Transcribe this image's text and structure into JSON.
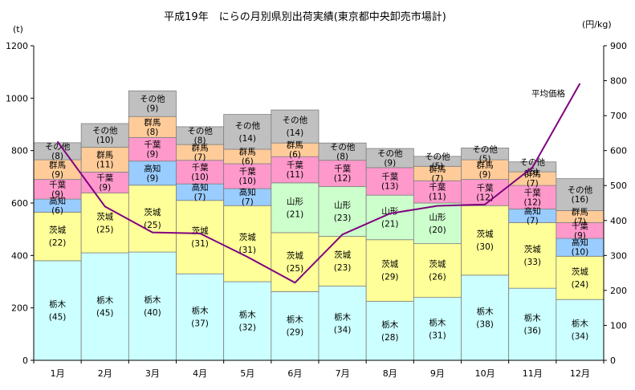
{
  "chart_data": {
    "type": "bar",
    "stacked": true,
    "title": "平成19年　にらの月別県別出荷実績(東京都中央卸売市場計)",
    "y_unit_left": "(t)",
    "y_unit_right": "(円/kg)",
    "ylim": [
      0,
      1200
    ],
    "y2lim": [
      0,
      900
    ],
    "yticks": [
      "0",
      "200",
      "400",
      "600",
      "800",
      "1000",
      "1200"
    ],
    "y2ticks": [
      "0",
      "100",
      "200",
      "300",
      "400",
      "500",
      "600",
      "700",
      "800",
      "900"
    ],
    "grid": false,
    "categories": [
      "1月",
      "2月",
      "3月",
      "4月",
      "5月",
      "6月",
      "7月",
      "8月",
      "9月",
      "10月",
      "11月",
      "12月"
    ],
    "series": [
      {
        "name": "栃木",
        "color": "#ccffff",
        "label": "栃木",
        "values": [
          380,
          410,
          413,
          330,
          300,
          262,
          283,
          225,
          240,
          325,
          275,
          232
        ],
        "shares": [
          "(45)",
          "(45)",
          "(40)",
          "(37)",
          "(32)",
          "(29)",
          "(34)",
          "(28)",
          "(31)",
          "(38)",
          "(36)",
          "(34)"
        ]
      },
      {
        "name": "茨城",
        "color": "#ffff99",
        "label": "茨城",
        "values": [
          185,
          228,
          255,
          280,
          290,
          225,
          190,
          235,
          205,
          265,
          250,
          165
        ],
        "shares": [
          "(22)",
          "(25)",
          "(25)",
          "(31)",
          "(31)",
          "(25)",
          "(23)",
          "(29)",
          "(26)",
          "(30)",
          "(33)",
          "(24)"
        ]
      },
      {
        "name": "山形",
        "color": "#ccffcc",
        "label": "山形",
        "values": [
          0,
          0,
          0,
          0,
          0,
          190,
          190,
          170,
          155,
          0,
          0,
          0
        ],
        "shares": [
          "",
          "",
          "",
          "",
          "",
          "(21)",
          "(23)",
          "(21)",
          "(20)",
          "",
          "",
          ""
        ]
      },
      {
        "name": "高知",
        "color": "#99ccff",
        "label": "高知",
        "values": [
          50,
          0,
          92,
          63,
          65,
          0,
          0,
          0,
          0,
          0,
          52,
          68
        ],
        "shares": [
          "(6)",
          "",
          "(9)",
          "(7)",
          "(7)",
          "",
          "",
          "",
          "",
          "",
          "(7)",
          "(10)"
        ]
      },
      {
        "name": "千葉",
        "color": "#ff99cc",
        "label": "千葉",
        "values": [
          75,
          80,
          90,
          90,
          95,
          100,
          100,
          105,
          85,
          100,
          90,
          60
        ],
        "shares": [
          "(9)",
          "(9)",
          "(9)",
          "(10)",
          "(10)",
          "(11)",
          "(12)",
          "(13)",
          "(11)",
          "(12)",
          "(12)",
          "(9)"
        ]
      },
      {
        "name": "群馬",
        "color": "#ffcc99",
        "label": "群馬",
        "values": [
          75,
          95,
          80,
          60,
          55,
          52,
          0,
          0,
          55,
          75,
          52,
          46
        ],
        "shares": [
          "(9)",
          "(11)",
          "(8)",
          "(7)",
          "(6)",
          "(6)",
          "",
          "",
          "(7)",
          "(9)",
          "(7)",
          "(7)"
        ]
      },
      {
        "name": "その他",
        "color": "#c0c0c0",
        "label": "その他",
        "values": [
          65,
          90,
          98,
          68,
          133,
          126,
          66,
          73,
          38,
          45,
          38,
          122
        ],
        "shares": [
          "(8)",
          "(10)",
          "(9)",
          "(8)",
          "(14)",
          "(14)",
          "(8)",
          "(9)",
          "(5)",
          "(5)",
          "(5)",
          "(16)"
        ]
      }
    ],
    "line": {
      "name": "平均価格",
      "axis": "right",
      "color": "#800080",
      "values": [
        626,
        440,
        366,
        363,
        296,
        222,
        360,
        420,
        442,
        446,
        552,
        792
      ]
    }
  }
}
